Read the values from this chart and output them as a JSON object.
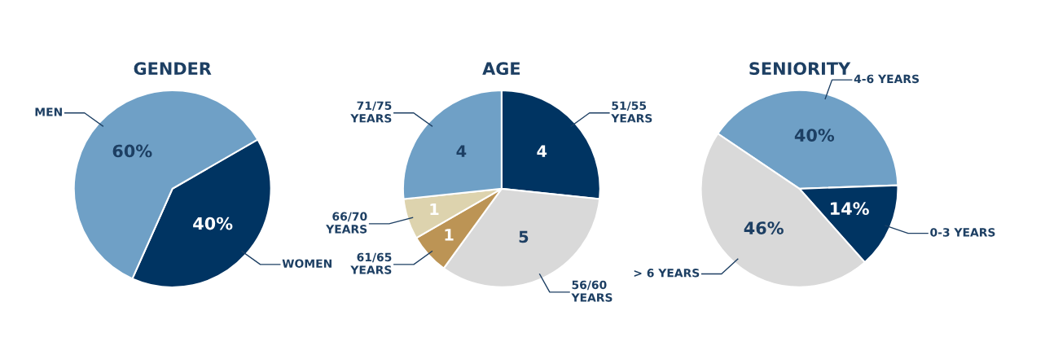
{
  "chart_data": [
    {
      "type": "pie",
      "title": "GENDER",
      "categories": [
        "WOMEN",
        "MEN"
      ],
      "values": [
        40,
        60
      ],
      "colors": [
        "#003462",
        "#6fa0c6"
      ],
      "value_labels": [
        "40%",
        "60%"
      ]
    },
    {
      "type": "pie",
      "title": "AGE",
      "categories": [
        "51/55\nYEARS",
        "56/60\nYEARS",
        "61/65\nYEARS",
        "66/70\nYEARS",
        "71/75\nYEARS"
      ],
      "values": [
        4,
        5,
        1,
        1,
        4
      ],
      "colors": [
        "#003462",
        "#d9d9d9",
        "#bc9455",
        "#ddd3ae",
        "#6fa0c6"
      ],
      "value_labels": [
        "4",
        "5",
        "1",
        "1",
        "4"
      ]
    },
    {
      "type": "pie",
      "title": "SENIORITY",
      "categories": [
        "4-6 YEARS",
        "0-3 YEARS",
        "> 6 YEARS"
      ],
      "values": [
        40,
        14,
        46
      ],
      "colors": [
        "#6fa0c6",
        "#003462",
        "#d9d9d9"
      ],
      "value_labels": [
        "40%",
        "14%",
        "46%"
      ]
    }
  ]
}
